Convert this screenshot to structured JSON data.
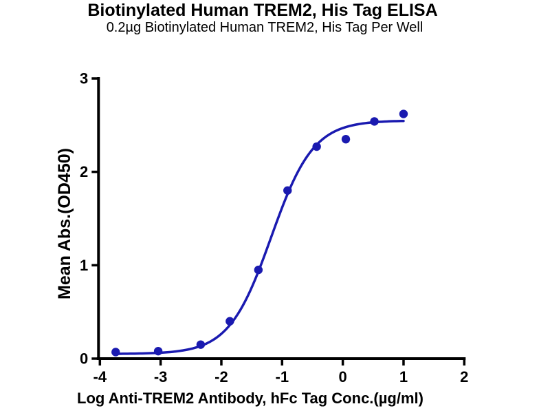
{
  "chart_data": {
    "type": "scatter",
    "title": "Biotinylated Human TREM2, His Tag ELISA",
    "subtitle": "0.2µg Biotinylated Human TREM2, His Tag Per Well",
    "xlabel": "Log Anti-TREM2 Antibody, hFc Tag Conc.(µg/ml)",
    "ylabel": "Mean Abs.(OD450)",
    "xlim": [
      -4,
      2
    ],
    "ylim": [
      0,
      3
    ],
    "x_ticks": [
      -4,
      -3,
      -2,
      -1,
      0,
      1,
      2
    ],
    "y_ticks": [
      0,
      1,
      2,
      3
    ],
    "grid": false,
    "legend": null,
    "colors": {
      "series": "#1a1ab0",
      "axis": "#000000"
    },
    "series": [
      {
        "name": "Anti-TREM2 Antibody, hFc Tag",
        "x": [
          -3.74,
          -3.04,
          -2.34,
          -1.86,
          -1.39,
          -0.91,
          -0.43,
          0.05,
          0.52,
          1.0
        ],
        "y": [
          0.07,
          0.08,
          0.15,
          0.4,
          0.95,
          1.8,
          2.27,
          2.35,
          2.54,
          2.62
        ]
      }
    ],
    "fit_curve": {
      "model": "4PL",
      "bottom": 0.05,
      "top": 2.55,
      "log_ec50": -1.18,
      "hill": 1.25,
      "x_range": [
        -3.74,
        1.0
      ]
    }
  }
}
